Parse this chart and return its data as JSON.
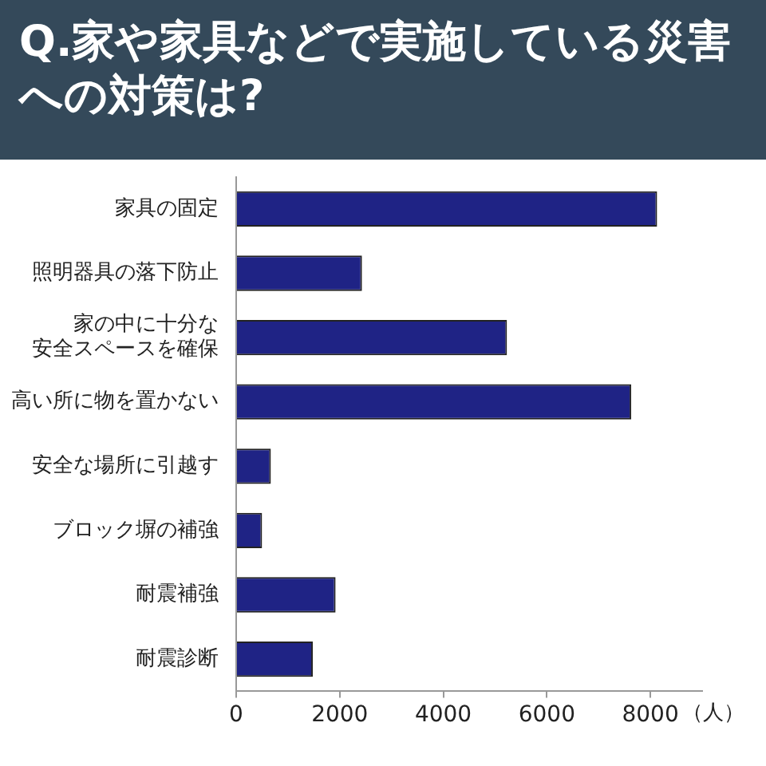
{
  "chart_data": {
    "type": "bar",
    "orientation": "horizontal",
    "title": "Q.家や家具などで実施している災害への対策は?",
    "xlabel": "（人）",
    "categories": [
      "家具の固定",
      "照明器具の落下防止",
      "家の中に十分な安全スペースを確保",
      "高い所に物を置かない",
      "安全な場所に引越す",
      "ブロック塀の補強",
      "耐震補強",
      "耐震診断"
    ],
    "values": [
      8130,
      2430,
      5230,
      7630,
      670,
      500,
      1920,
      1480
    ],
    "color": "#1f2385",
    "xlim": [
      0,
      9000
    ],
    "xticks": [
      0,
      2000,
      4000,
      6000,
      8000
    ],
    "grid": false
  }
}
